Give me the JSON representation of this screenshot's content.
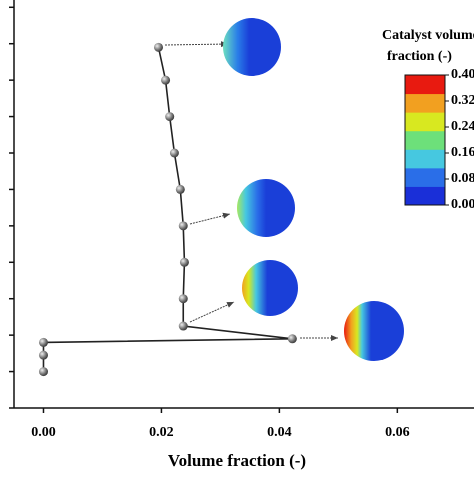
{
  "chart_data": {
    "type": "line",
    "x_label": "Volume fraction (-)",
    "series": [
      {
        "color": "#222222",
        "x": [
          0.0,
          0.0,
          0.0,
          0.0422,
          0.0237,
          0.0237,
          0.0239,
          0.0237,
          0.0232,
          0.0222,
          0.0214,
          0.0207,
          0.0195
        ],
        "values": [
          1.0,
          1.45,
          1.8,
          1.9,
          2.25,
          3.0,
          4.0,
          5.0,
          6.0,
          7.0,
          8.0,
          9.0,
          9.9
        ]
      }
    ],
    "xlim": [
      -0.005,
      0.073
    ],
    "xticks": [
      {
        "value": 0,
        "label": "0.00"
      },
      0.02,
      0.04,
      0.06
    ],
    "ylim": [
      0,
      11.2
    ],
    "yticks": [
      0,
      1,
      2,
      3,
      4,
      5,
      6,
      7,
      8,
      9,
      10,
      11
    ],
    "colorbar": {
      "title": [
        "Catalyst volume",
        "fraction (-)"
      ],
      "colors": [
        "#1a2fd8",
        "#2a6ee8",
        "#46c8e0",
        "#6de07a",
        "#d8e820",
        "#f2a020",
        "#e81a10"
      ],
      "ticks": [
        {
          "value": 0.4,
          "label": "0.40"
        },
        {
          "value": 0.32,
          "label": "0.32"
        },
        {
          "value": 0.24,
          "label": "0.24"
        },
        {
          "value": 0.16,
          "label": "0.16"
        },
        {
          "value": 0.08,
          "label": "0.08"
        },
        {
          "value": 0,
          "label": "0.00"
        }
      ],
      "lim": [
        0,
        0.4
      ]
    }
  }
}
